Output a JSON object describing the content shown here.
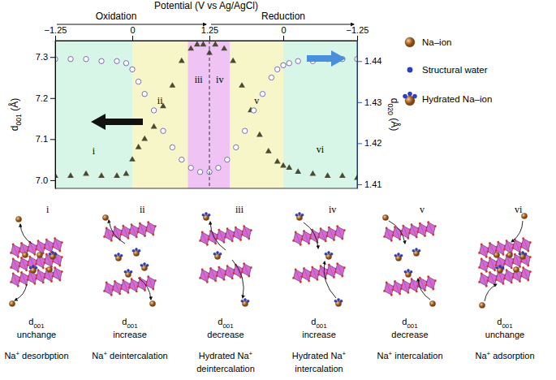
{
  "chart_data": [
    {
      "type": "scatter",
      "title": "Oxidation",
      "x_label": "Potential (V vs Ag/AgCl)",
      "y_label": "d001 (Å)",
      "xlim": [
        -1.25,
        1.25
      ],
      "xticks": [
        {
          "value": -1.25,
          "label": "−1.25"
        },
        0,
        1.25
      ],
      "ylim": [
        6.98,
        7.34
      ],
      "yticks": [
        {
          "value": 7,
          "label": "7.0"
        },
        7.1,
        7.2,
        7.3
      ],
      "y2lim": [
        1.409,
        1.445
      ],
      "regions": [
        {
          "label": "i",
          "from": -1.25,
          "to": 0,
          "color": "#d7f6e7"
        },
        {
          "label": "ii",
          "from": 0,
          "to": 0.9,
          "color": "#f6f6c8"
        },
        {
          "label": "iii",
          "from": 0.9,
          "to": 1.25,
          "color": "#efc3f3"
        }
      ],
      "series": [
        {
          "marker": "triangle",
          "color": "#4b4a33",
          "x": [
            -1.25,
            -1.0,
            -0.75,
            -0.5,
            -0.25,
            -0.1,
            0,
            0.1,
            0.2,
            0.35,
            0.5,
            0.65,
            0.8,
            0.95,
            1.05,
            1.15,
            1.25
          ],
          "values": [
            7.01,
            7.01,
            7.015,
            7.01,
            7.01,
            7.015,
            7.05,
            7.08,
            7.1,
            7.13,
            7.18,
            7.23,
            7.29,
            7.32,
            7.33,
            7.33,
            7.31
          ]
        },
        {
          "marker": "circle",
          "color": "#6a5fb0",
          "axis": "y2",
          "x": [
            -1.25,
            -1.0,
            -0.75,
            -0.5,
            -0.25,
            -0.1,
            0,
            0.1,
            0.2,
            0.35,
            0.5,
            0.65,
            0.8,
            0.95,
            1.1,
            1.25
          ],
          "values": [
            1.4405,
            1.4405,
            1.4405,
            1.44,
            1.44,
            1.4395,
            1.438,
            1.435,
            1.432,
            1.428,
            1.423,
            1.419,
            1.416,
            1.414,
            1.413,
            1.413
          ]
        }
      ]
    },
    {
      "type": "scatter",
      "title": "Reduction",
      "y2_label": "d020 (Å)",
      "xlim": [
        1.25,
        -1.25
      ],
      "xticks": [
        0,
        {
          "value": -1.25,
          "label": "−1.25"
        }
      ],
      "ylim": [
        6.98,
        7.34
      ],
      "y2lim": [
        1.409,
        1.445
      ],
      "y2ticks": [
        1.41,
        1.42,
        1.43,
        1.44
      ],
      "regions": [
        {
          "label": "iv",
          "from": 1.25,
          "to": 0.9,
          "color": "#efc3f3"
        },
        {
          "label": "v",
          "from": 0.9,
          "to": 0,
          "color": "#f6f6c8"
        },
        {
          "label": "vi",
          "from": 0,
          "to": -1.25,
          "color": "#d7f6e7"
        }
      ],
      "series": [
        {
          "marker": "triangle",
          "color": "#4b4a33",
          "x": [
            1.25,
            1.15,
            1.0,
            0.85,
            0.7,
            0.55,
            0.4,
            0.25,
            0.1,
            0,
            -0.1,
            -0.25,
            -0.5,
            -0.75,
            -1.0,
            -1.25
          ],
          "values": [
            7.31,
            7.33,
            7.32,
            7.29,
            7.23,
            7.17,
            7.11,
            7.07,
            7.045,
            7.035,
            7.03,
            7.02,
            7.015,
            7.01,
            7.01,
            7.005
          ]
        },
        {
          "marker": "circle",
          "color": "#6a5fb0",
          "axis": "y2",
          "x": [
            1.25,
            1.1,
            0.95,
            0.8,
            0.65,
            0.5,
            0.35,
            0.2,
            0.1,
            0,
            -0.1,
            -0.25,
            -0.5,
            -0.75,
            -1.0,
            -1.25
          ],
          "values": [
            1.413,
            1.414,
            1.416,
            1.419,
            1.423,
            1.428,
            1.432,
            1.436,
            1.438,
            1.439,
            1.4395,
            1.44,
            1.44,
            1.4405,
            1.4405,
            1.4405
          ]
        }
      ]
    }
  ],
  "legend_items": [
    "Na–ion",
    "Structural water",
    "Hydrated Na–ion"
  ],
  "panels": [
    {
      "label": "i",
      "d_label": "d001",
      "change": "unchange",
      "caption": [
        "Na+ desorbption"
      ]
    },
    {
      "label": "ii",
      "d_label": "d001",
      "change": "increase",
      "caption": [
        "Na+ deintercalation"
      ]
    },
    {
      "label": "iii",
      "d_label": "d001",
      "change": "decrease",
      "caption": [
        "Hydrated Na+",
        "deintercalation"
      ]
    },
    {
      "label": "iv",
      "d_label": "d001",
      "change": "increase",
      "caption": [
        "Hydrated Na+",
        "intercalation"
      ]
    },
    {
      "label": "v",
      "d_label": "d001",
      "change": "decrease",
      "caption": [
        "Na+ intercalation"
      ]
    },
    {
      "label": "vi",
      "d_label": "d001",
      "change": "unchange",
      "caption": [
        "Na+ adsorption"
      ]
    }
  ]
}
